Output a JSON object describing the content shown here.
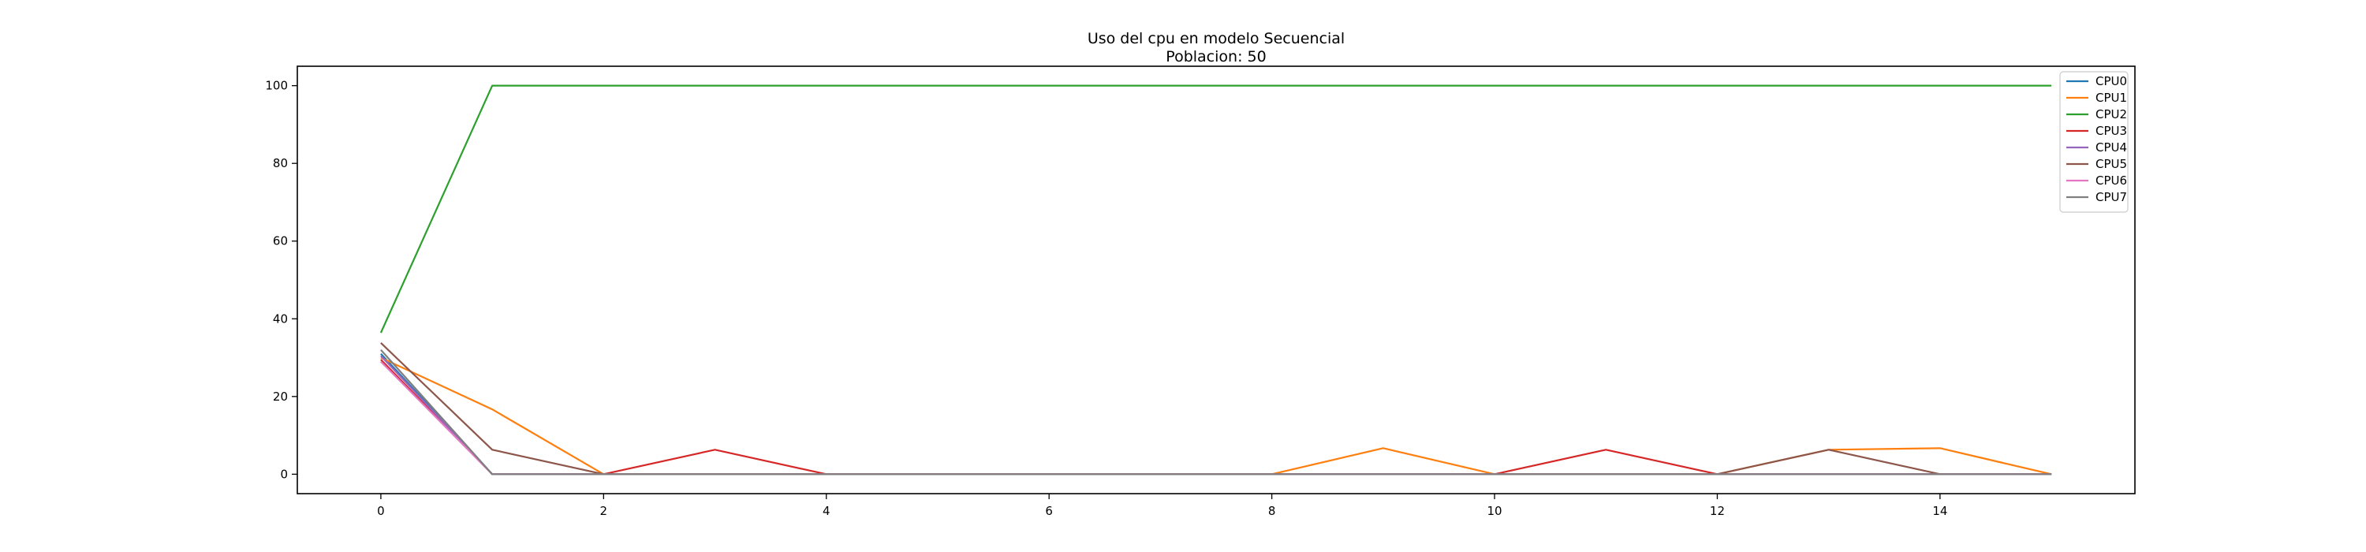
{
  "chart_data": {
    "type": "line",
    "title": "Uso del cpu en modelo Secuencial",
    "subtitle": "Poblacion: 50",
    "xlabel": "",
    "ylabel": "",
    "xlim": [
      -0.75,
      15.75
    ],
    "ylim": [
      -5,
      105
    ],
    "x_ticks": [
      0,
      2,
      4,
      6,
      8,
      10,
      12,
      14
    ],
    "y_ticks": [
      0,
      20,
      40,
      60,
      80,
      100
    ],
    "grid": false,
    "legend_position": "top-right",
    "x": [
      0,
      1,
      2,
      3,
      4,
      5,
      6,
      7,
      8,
      9,
      10,
      11,
      12,
      13,
      14,
      15
    ],
    "series": [
      {
        "name": "CPU0",
        "color": "#1f77b4",
        "values": [
          31,
          0,
          0,
          0,
          0,
          0,
          0,
          0,
          0,
          0,
          0,
          0,
          0,
          0,
          0,
          0
        ]
      },
      {
        "name": "CPU1",
        "color": "#ff7f0e",
        "values": [
          30,
          16.7,
          0,
          0,
          0,
          0,
          0,
          0,
          0,
          6.7,
          0,
          0,
          0,
          6.3,
          6.7,
          0
        ]
      },
      {
        "name": "CPU2",
        "color": "#2ca02c",
        "values": [
          36.4,
          100,
          100,
          100,
          100,
          100,
          100,
          100,
          100,
          100,
          100,
          100,
          100,
          100,
          100,
          100
        ]
      },
      {
        "name": "CPU3",
        "color": "#d62728",
        "values": [
          29.5,
          0,
          0,
          6.3,
          0,
          0,
          0,
          0,
          0,
          0,
          0,
          6.3,
          0,
          0,
          0,
          0
        ]
      },
      {
        "name": "CPU4",
        "color": "#9467bd",
        "values": [
          30.5,
          0,
          0,
          0,
          0,
          0,
          0,
          0,
          0,
          0,
          0,
          0,
          0,
          0,
          0,
          0
        ]
      },
      {
        "name": "CPU5",
        "color": "#8c564b",
        "values": [
          33.8,
          6.3,
          0,
          0,
          0,
          0,
          0,
          0,
          0,
          0,
          0,
          0,
          0,
          6.3,
          0,
          0
        ]
      },
      {
        "name": "CPU6",
        "color": "#e377c2",
        "values": [
          29,
          0,
          0,
          0,
          0,
          0,
          0,
          0,
          0,
          0,
          0,
          0,
          0,
          0,
          0,
          0
        ]
      },
      {
        "name": "CPU7",
        "color": "#7f7f7f",
        "values": [
          32,
          0,
          0,
          0,
          0,
          0,
          0,
          0,
          0,
          0,
          0,
          0,
          0,
          0,
          0,
          0
        ]
      }
    ]
  }
}
